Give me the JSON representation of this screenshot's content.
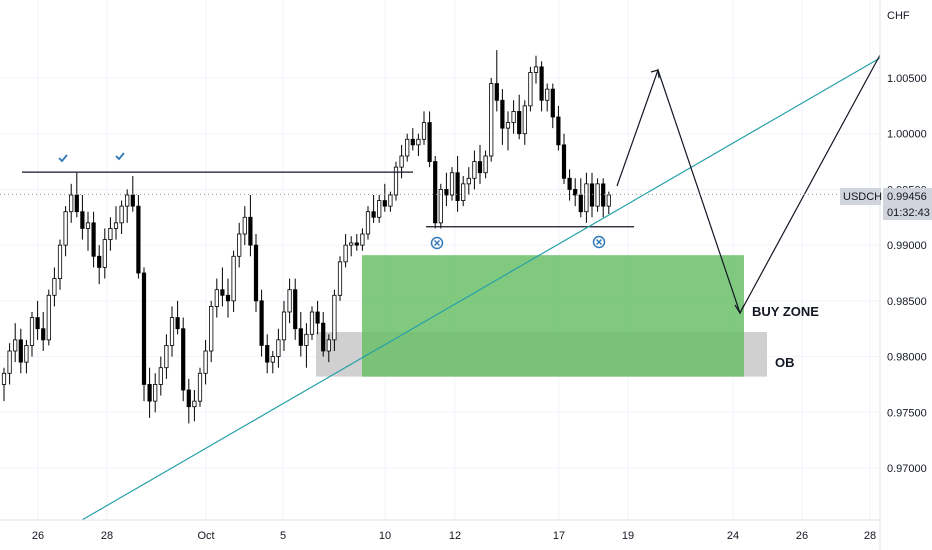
{
  "chart_data": {
    "type": "candlestick",
    "symbol": "USDCHF",
    "currency": "CHF",
    "last_price": "0.99456",
    "countdown": "01:32:43",
    "y_ticks": [
      "1.00500",
      "1.00000",
      "0.99500",
      "0.99000",
      "0.98500",
      "0.98000",
      "0.97500",
      "0.97000"
    ],
    "x_ticks": [
      "26",
      "28",
      "Oct",
      "5",
      "10",
      "12",
      "17",
      "19",
      "24",
      "26",
      "28"
    ],
    "ylim": [
      0.966,
      1.01
    ],
    "grid": true,
    "candles": [
      [
        0.9775,
        0.979,
        0.976,
        0.9785
      ],
      [
        0.9785,
        0.9812,
        0.9775,
        0.9805
      ],
      [
        0.9805,
        0.983,
        0.9795,
        0.9815
      ],
      [
        0.9815,
        0.9825,
        0.9785,
        0.9795
      ],
      [
        0.9795,
        0.9815,
        0.9785,
        0.981
      ],
      [
        0.981,
        0.984,
        0.98,
        0.9835
      ],
      [
        0.9835,
        0.985,
        0.9815,
        0.9825
      ],
      [
        0.9825,
        0.984,
        0.9805,
        0.9815
      ],
      [
        0.9815,
        0.986,
        0.981,
        0.9855
      ],
      [
        0.9855,
        0.988,
        0.9845,
        0.987
      ],
      [
        0.987,
        0.9905,
        0.986,
        0.99
      ],
      [
        0.99,
        0.9935,
        0.989,
        0.993
      ],
      [
        0.993,
        0.9955,
        0.992,
        0.9945
      ],
      [
        0.9945,
        0.9965,
        0.9925,
        0.993
      ],
      [
        0.993,
        0.9945,
        0.9905,
        0.9915
      ],
      [
        0.9915,
        0.993,
        0.9895,
        0.992
      ],
      [
        0.992,
        0.993,
        0.988,
        0.989
      ],
      [
        0.989,
        0.99,
        0.9865,
        0.988
      ],
      [
        0.988,
        0.9915,
        0.987,
        0.9905
      ],
      [
        0.9905,
        0.9925,
        0.9895,
        0.9915
      ],
      [
        0.9915,
        0.9935,
        0.9905,
        0.992
      ],
      [
        0.992,
        0.994,
        0.991,
        0.9935
      ],
      [
        0.9935,
        0.995,
        0.992,
        0.9945
      ],
      [
        0.9945,
        0.9962,
        0.993,
        0.9935
      ],
      [
        0.9935,
        0.9945,
        0.987,
        0.9875
      ],
      [
        0.9875,
        0.988,
        0.976,
        0.9775
      ],
      [
        0.9775,
        0.979,
        0.9745,
        0.976
      ],
      [
        0.976,
        0.9785,
        0.975,
        0.9775
      ],
      [
        0.9775,
        0.98,
        0.9765,
        0.979
      ],
      [
        0.979,
        0.982,
        0.978,
        0.981
      ],
      [
        0.981,
        0.9845,
        0.98,
        0.9835
      ],
      [
        0.9835,
        0.985,
        0.982,
        0.9825
      ],
      [
        0.9825,
        0.9835,
        0.976,
        0.977
      ],
      [
        0.977,
        0.978,
        0.974,
        0.9755
      ],
      [
        0.9755,
        0.977,
        0.9742,
        0.976
      ],
      [
        0.976,
        0.979,
        0.9755,
        0.9785
      ],
      [
        0.9785,
        0.9815,
        0.9775,
        0.9805
      ],
      [
        0.9805,
        0.985,
        0.9795,
        0.9845
      ],
      [
        0.9845,
        0.987,
        0.9835,
        0.986
      ],
      [
        0.986,
        0.988,
        0.9845,
        0.9855
      ],
      [
        0.9855,
        0.987,
        0.9835,
        0.985
      ],
      [
        0.985,
        0.9895,
        0.984,
        0.989
      ],
      [
        0.989,
        0.992,
        0.988,
        0.991
      ],
      [
        0.991,
        0.9935,
        0.99,
        0.9925
      ],
      [
        0.9925,
        0.9945,
        0.989,
        0.99
      ],
      [
        0.99,
        0.991,
        0.984,
        0.985
      ],
      [
        0.985,
        0.986,
        0.98,
        0.981
      ],
      [
        0.981,
        0.982,
        0.9785,
        0.9795
      ],
      [
        0.9795,
        0.9805,
        0.9785,
        0.98
      ],
      [
        0.98,
        0.9825,
        0.979,
        0.9815
      ],
      [
        0.9815,
        0.985,
        0.9805,
        0.984
      ],
      [
        0.984,
        0.987,
        0.983,
        0.986
      ],
      [
        0.986,
        0.987,
        0.9815,
        0.9825
      ],
      [
        0.9825,
        0.984,
        0.98,
        0.981
      ],
      [
        0.981,
        0.983,
        0.979,
        0.982
      ],
      [
        0.982,
        0.9845,
        0.9815,
        0.984
      ],
      [
        0.984,
        0.985,
        0.982,
        0.983
      ],
      [
        0.983,
        0.984,
        0.98,
        0.9805
      ],
      [
        0.9805,
        0.982,
        0.9795,
        0.9815
      ],
      [
        0.9815,
        0.986,
        0.9805,
        0.9855
      ],
      [
        0.9855,
        0.989,
        0.985,
        0.9885
      ],
      [
        0.9885,
        0.991,
        0.988,
        0.99
      ],
      [
        0.99,
        0.9908,
        0.989,
        0.9902
      ],
      [
        0.9902,
        0.991,
        0.9895,
        0.99
      ],
      [
        0.99,
        0.9915,
        0.9895,
        0.991
      ],
      [
        0.991,
        0.9935,
        0.9905,
        0.993
      ],
      [
        0.993,
        0.9945,
        0.992,
        0.9925
      ],
      [
        0.9925,
        0.9945,
        0.992,
        0.994
      ],
      [
        0.994,
        0.9955,
        0.993,
        0.9935
      ],
      [
        0.9935,
        0.9948,
        0.993,
        0.9945
      ],
      [
        0.9945,
        0.9975,
        0.994,
        0.997
      ],
      [
        0.997,
        0.999,
        0.996,
        0.998
      ],
      [
        0.998,
        1.0,
        0.9975,
        0.9995
      ],
      [
        0.9995,
        1.0005,
        0.9985,
        0.999
      ],
      [
        0.999,
        1.0,
        0.998,
        0.9995
      ],
      [
        0.9995,
        1.002,
        0.999,
        1.001
      ],
      [
        1.001,
        1.002,
        0.997,
        0.9975
      ],
      [
        0.9975,
        0.998,
        0.9915,
        0.992
      ],
      [
        0.992,
        0.9955,
        0.9915,
        0.995
      ],
      [
        0.995,
        0.9965,
        0.9935,
        0.9945
      ],
      [
        0.9945,
        0.997,
        0.994,
        0.9965
      ],
      [
        0.9965,
        0.998,
        0.993,
        0.994
      ],
      [
        0.994,
        0.9962,
        0.9935,
        0.9955
      ],
      [
        0.9955,
        0.997,
        0.9945,
        0.996
      ],
      [
        0.996,
        0.9985,
        0.995,
        0.9975
      ],
      [
        0.9975,
        0.999,
        0.9955,
        0.9965
      ],
      [
        0.9965,
        0.9985,
        0.996,
        0.998
      ],
      [
        0.998,
        1.005,
        0.9975,
        1.0045
      ],
      [
        1.0045,
        1.0075,
        1.002,
        1.003
      ],
      [
        1.003,
        1.004,
        0.999,
        1.0005
      ],
      [
        1.0005,
        1.002,
        0.9985,
        1.001
      ],
      [
        1.001,
        1.003,
        1.0,
        1.002
      ],
      [
        1.002,
        1.0035,
        0.9995,
        1.0
      ],
      [
        1.0,
        1.003,
        0.999,
        1.0025
      ],
      [
        1.0025,
        1.006,
        1.002,
        1.0055
      ],
      [
        1.0055,
        1.007,
        1.0045,
        1.006
      ],
      [
        1.006,
        1.0065,
        1.002,
        1.003
      ],
      [
        1.003,
        1.0045,
        1.002,
        1.004
      ],
      [
        1.004,
        1.0045,
        1.0005,
        1.0015
      ],
      [
        1.0015,
        1.0025,
        0.9985,
        0.999
      ],
      [
        0.999,
        1.0,
        0.9955,
        0.996
      ],
      [
        0.996,
        0.9968,
        0.994,
        0.995
      ],
      [
        0.995,
        0.996,
        0.9935,
        0.9945
      ],
      [
        0.9945,
        0.996,
        0.9925,
        0.993
      ],
      [
        0.993,
        0.9965,
        0.992,
        0.9955
      ],
      [
        0.9955,
        0.9965,
        0.9925,
        0.9935
      ],
      [
        0.9935,
        0.996,
        0.993,
        0.9955
      ],
      [
        0.9955,
        0.996,
        0.9925,
        0.9935
      ],
      [
        0.9935,
        0.9948,
        0.9928,
        0.9945
      ]
    ]
  },
  "annotations": {
    "buy_zone_label": "BUY ZONE",
    "ob_label": "OB",
    "resistance_level": 0.99655,
    "neckline_level": 0.99165,
    "buy_zone": [
      0.9891,
      0.9782
    ],
    "ob_zone": [
      0.9822,
      0.9782
    ],
    "colors": {
      "up": "#ffffff",
      "down": "#000000",
      "buy_zone": "#6abf69",
      "ob_zone": "#c8c8c8",
      "trendline": "#26a0a8",
      "marker": "#3179b8"
    }
  }
}
